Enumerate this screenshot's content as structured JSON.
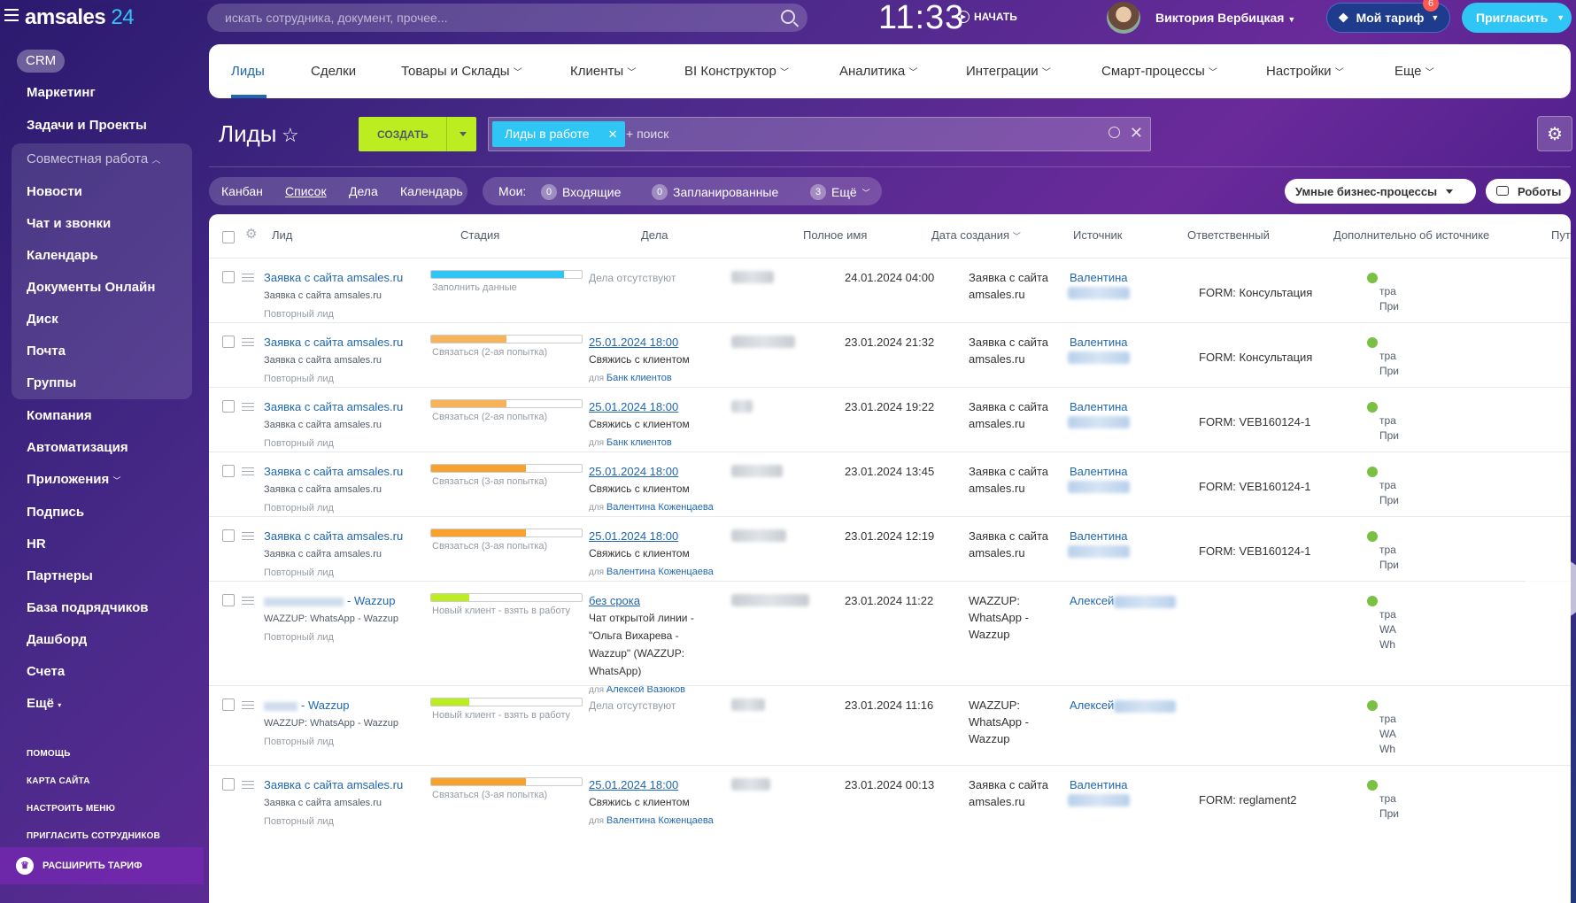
{
  "topbar": {
    "logo_main": "amsales",
    "logo_num": "24",
    "search_placeholder": "искать сотрудника, документ, прочее...",
    "clock": "11:33",
    "start": "НАЧАТЬ",
    "user": "Виктория Вербицкая",
    "tariff": "Мой тариф",
    "tariff_badge": "6",
    "invite": "Пригласить"
  },
  "sidebar": {
    "crm": "CRM",
    "items": [
      "Маркетинг",
      "Задачи и Проекты",
      "Совместная работа",
      "Новости",
      "Чат и звонки",
      "Календарь",
      "Документы Онлайн",
      "Диск",
      "Почта",
      "Группы",
      "Компания",
      "Автоматизация",
      "Приложения",
      "Подпись",
      "HR",
      "Партнеры",
      "База подрядчиков",
      "Дашборд",
      "Счета",
      "Ещё"
    ],
    "footer": [
      "ПОМОЩЬ",
      "КАРТА САЙТА",
      "НАСТРОИТЬ МЕНЮ",
      "ПРИГЛАСИТЬ СОТРУДНИКОВ"
    ],
    "upgrade": "РАСШИРИТЬ ТАРИФ"
  },
  "nav": {
    "tabs": [
      "Лиды",
      "Сделки",
      "Товары и Склады",
      "Клиенты",
      "BI Конструктор",
      "Аналитика",
      "Интеграции",
      "Смарт-процессы",
      "Настройки",
      "Еще"
    ]
  },
  "toolbar": {
    "title": "Лиды",
    "create": "СОЗДАТЬ",
    "filter_chip": "Лиды в работе",
    "search": "+ поиск"
  },
  "views": {
    "items": [
      "Канбан",
      "Список",
      "Дела",
      "Календарь"
    ],
    "mine_label": "Мои:",
    "incoming_count": "0",
    "incoming": "Входящие",
    "planned_count": "0",
    "planned": "Запланированные",
    "more_count": "3",
    "more": "Ещё",
    "smart": "Умные бизнес-процессы",
    "robots": "Роботы"
  },
  "columns": [
    "Лид",
    "Стадия",
    "Дела",
    "Полное имя",
    "Дата создания",
    "Источник",
    "Ответственный",
    "Дополнительно об источнике",
    "Пут"
  ],
  "rows": [
    {
      "title": "Заявка с сайта amsales.ru",
      "sub": "Заявка с сайта amsales.ru",
      "repeat": "Повторный лид",
      "stage": "Заполнить данные",
      "stage_color": "#2fc6f6",
      "stage_fill": 0.88,
      "deals": "Дела отсутствуют",
      "date": "24.01.2024 04:00",
      "src1": "Заявка с сайта",
      "src2": "amsales.ru",
      "src3": "",
      "resp": "Валентина",
      "extra": "FORM: Консультация",
      "p1": "тра",
      "p2": "При"
    },
    {
      "title": "Заявка с сайта amsales.ru",
      "sub": "Заявка с сайта amsales.ru",
      "repeat": "Повторный лид",
      "stage": "Связаться (2-ая попытка)",
      "stage_color": "#f7b359",
      "stage_fill": 0.5,
      "deal_date": "25.01.2024 18:00",
      "deal_text": "Свяжись с клиентом",
      "deal_for": "для",
      "deal_who": "Банк клиентов",
      "date": "23.01.2024 21:32",
      "src1": "Заявка с сайта",
      "src2": "amsales.ru",
      "src3": "",
      "resp": "Валентина",
      "extra": "FORM: Консультация",
      "p1": "тра",
      "p2": "При"
    },
    {
      "title": "Заявка с сайта amsales.ru",
      "sub": "Заявка с сайта amsales.ru",
      "repeat": "Повторный лид",
      "stage": "Связаться (2-ая попытка)",
      "stage_color": "#f7b359",
      "stage_fill": 0.5,
      "deal_date": "25.01.2024 18:00",
      "deal_text": "Свяжись с клиентом",
      "deal_for": "для",
      "deal_who": "Банк клиентов",
      "date": "23.01.2024 19:22",
      "src1": "Заявка с сайта",
      "src2": "amsales.ru",
      "src3": "",
      "resp": "Валентина",
      "extra": "FORM: VEB160124-1",
      "p1": "тра",
      "p2": "При"
    },
    {
      "title": "Заявка с сайта amsales.ru",
      "sub": "Заявка с сайта amsales.ru",
      "repeat": "Повторный лид",
      "stage": "Связаться (3-ая попытка)",
      "stage_color": "#f7a22e",
      "stage_fill": 0.63,
      "deal_date": "25.01.2024 18:00",
      "deal_text": "Свяжись с клиентом",
      "deal_for": "для",
      "deal_who": "Валентина Коженцаева",
      "date": "23.01.2024 13:45",
      "src1": "Заявка с сайта",
      "src2": "amsales.ru",
      "src3": "",
      "resp": "Валентина",
      "extra": "FORM: VEB160124-1",
      "p1": "тра",
      "p2": "При"
    },
    {
      "title": "Заявка с сайта amsales.ru",
      "sub": "Заявка с сайта amsales.ru",
      "repeat": "Повторный лид",
      "stage": "Связаться (3-ая попытка)",
      "stage_color": "#f7a22e",
      "stage_fill": 0.63,
      "deal_date": "25.01.2024 18:00",
      "deal_text": "Свяжись с клиентом",
      "deal_for": "для",
      "deal_who": "Валентина Коженцаева",
      "date": "23.01.2024 12:19",
      "src1": "Заявка с сайта",
      "src2": "amsales.ru",
      "src3": "",
      "resp": "Валентина",
      "extra": "FORM: VEB160124-1",
      "p1": "тра",
      "p2": "При"
    },
    {
      "title": "- Wazzup",
      "sub": "WAZZUP: WhatsApp - Wazzup",
      "repeat": "Повторный лид",
      "stage": "Новый клиент - взять в работу",
      "stage_color": "#bbed21",
      "stage_fill": 0.25,
      "deal_date": "без срока",
      "deal_text": "Чат открытой линии - \"Ольга Вихарева - Wazzup\" (WAZZUP: WhatsApp)",
      "deal_for": "для",
      "deal_who": "Алексей Вазюков",
      "date": "23.01.2024 11:22",
      "src1": "WAZZUP:",
      "src2": "WhatsApp -",
      "src3": "Wazzup",
      "resp": "Алексей",
      "extra": "",
      "p1": "тра",
      "p2": "WA",
      "p3": "Wh"
    },
    {
      "title": "- Wazzup",
      "sub": "WAZZUP: WhatsApp - Wazzup",
      "repeat": "Повторный лид",
      "stage": "Новый клиент - взять в работу",
      "stage_color": "#bbed21",
      "stage_fill": 0.25,
      "deals": "Дела отсутствуют",
      "date": "23.01.2024 11:16",
      "src1": "WAZZUP:",
      "src2": "WhatsApp -",
      "src3": "Wazzup",
      "resp": "Алексей",
      "extra": "",
      "p1": "тра",
      "p2": "WA",
      "p3": "Wh"
    },
    {
      "title": "Заявка с сайта amsales.ru",
      "sub": "Заявка с сайта amsales.ru",
      "repeat": "Повторный лид",
      "stage": "Связаться (3-ая попытка)",
      "stage_color": "#f7a22e",
      "stage_fill": 0.63,
      "deal_date": "25.01.2024 18:00",
      "deal_text": "Свяжись с клиентом",
      "deal_for": "для",
      "deal_who": "Валентина Коженцаева",
      "date": "23.01.2024 00:13",
      "src1": "Заявка с сайта",
      "src2": "amsales.ru",
      "src3": "",
      "resp": "Валентина",
      "extra": "FORM: reglament2",
      "p1": "тра",
      "p2": "При"
    }
  ]
}
